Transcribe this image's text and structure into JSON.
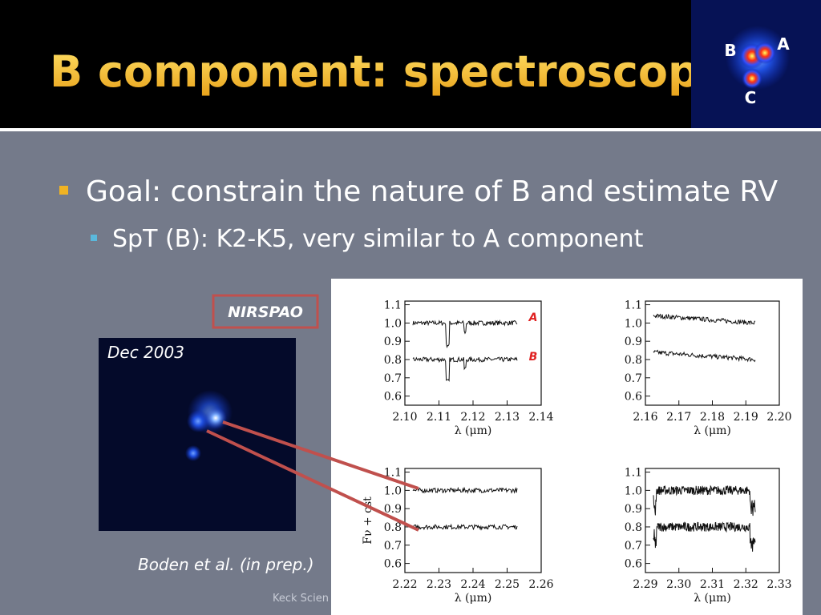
{
  "header": {
    "title": "B component: spectroscopy",
    "inset_labels": [
      "A",
      "B",
      "C"
    ]
  },
  "bullets": [
    {
      "text": "Goal: constrain the nature of B and estimate RV",
      "sub": [
        "SpT (B): K2-K5, very similar to A component"
      ]
    }
  ],
  "nirspao_label": "NIRSPAO",
  "image_caption": "Dec 2003",
  "citation": "Boden et al. (in prep.)",
  "footer": "Keck Scien",
  "figure": {
    "ylabel": "Fν + cst",
    "xlabel": "λ (μm)",
    "series_labels": [
      "A",
      "B"
    ],
    "ylim": [
      0.55,
      1.12
    ],
    "yticks": [
      1.1,
      {
        "value": 1,
        "label": "1.0"
      },
      0.9,
      0.8,
      0.7,
      0.6
    ],
    "panels": [
      {
        "xlim": [
          2.1,
          2.14
        ],
        "xticks": [
          {
            "value": 2.1,
            "label": "2.10"
          },
          2.11,
          2.12,
          2.13,
          2.14
        ]
      },
      {
        "xlim": [
          2.16,
          2.2
        ],
        "xticks": [
          2.16,
          2.17,
          2.18,
          2.19,
          {
            "value": 2.2,
            "label": "2.20"
          }
        ]
      },
      {
        "xlim": [
          2.22,
          2.26
        ],
        "xticks": [
          2.22,
          2.23,
          2.24,
          2.25,
          2.26
        ]
      },
      {
        "xlim": [
          2.29,
          2.33
        ],
        "xticks": [
          2.29,
          {
            "value": 2.3,
            "label": "2.30"
          },
          2.31,
          2.32,
          2.33
        ]
      }
    ]
  }
}
